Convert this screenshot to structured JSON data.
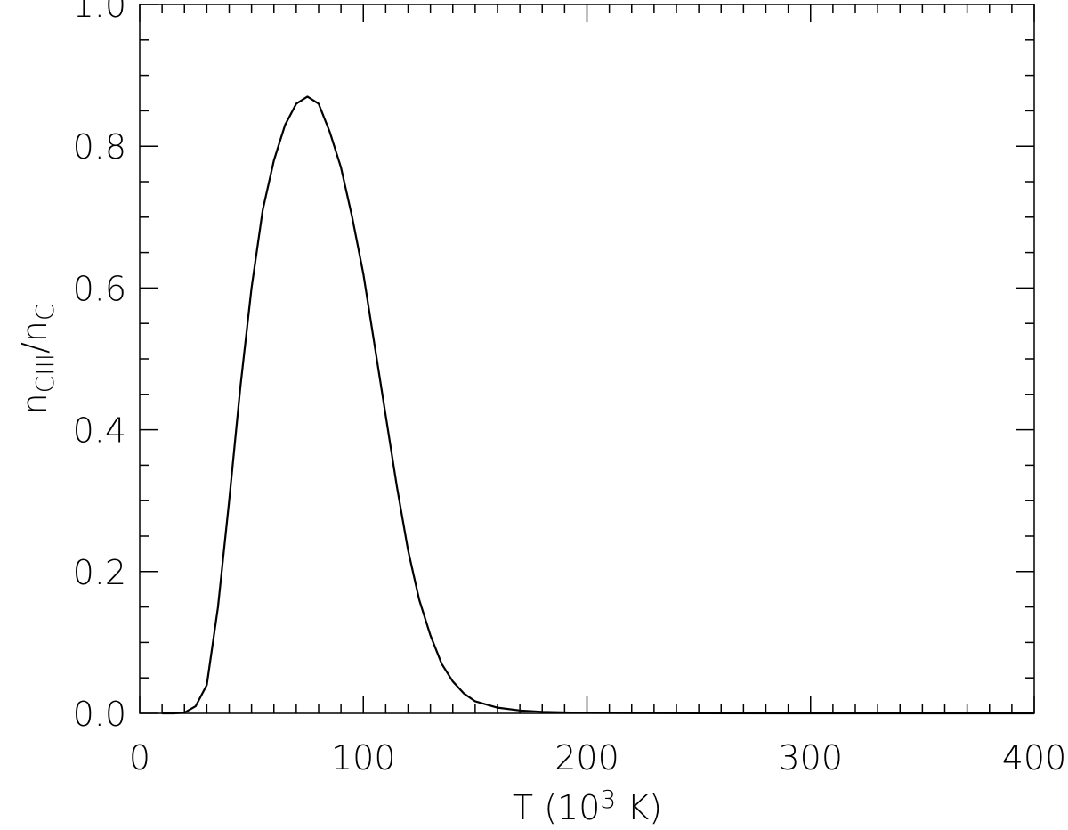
{
  "chart_data": {
    "type": "line",
    "xlabel": [
      {
        "text": "T (10"
      },
      {
        "text": "3",
        "sup": true
      },
      {
        "text": " K)"
      }
    ],
    "ylabel": [
      {
        "text": "n"
      },
      {
        "text": "CIII",
        "sub": true
      },
      {
        "text": "/n"
      },
      {
        "text": "C",
        "sub": true
      }
    ],
    "x": [
      10,
      15,
      20,
      25,
      30,
      35,
      40,
      45,
      50,
      55,
      60,
      65,
      70,
      75,
      80,
      85,
      90,
      95,
      100,
      105,
      110,
      115,
      120,
      125,
      130,
      135,
      140,
      145,
      150,
      160,
      170,
      180,
      200,
      250,
      300,
      350,
      400
    ],
    "series": [
      {
        "color": "#000000",
        "values": [
          0,
          0,
          0.001,
          0.01,
          0.04,
          0.15,
          0.3,
          0.46,
          0.6,
          0.71,
          0.78,
          0.83,
          0.86,
          0.87,
          0.86,
          0.82,
          0.77,
          0.7,
          0.62,
          0.52,
          0.42,
          0.32,
          0.23,
          0.16,
          0.11,
          0.07,
          0.045,
          0.028,
          0.017,
          0.008,
          0.004,
          0.002,
          0.0007,
          0.0001,
          0,
          0,
          0
        ]
      }
    ],
    "xlim": [
      0,
      400
    ],
    "ylim": [
      0,
      1
    ],
    "xticks": [
      0,
      100,
      200,
      300,
      400
    ],
    "yticks": [
      {
        "value": 0,
        "label": "0.0"
      },
      {
        "value": 0.2,
        "label": "0.2"
      },
      {
        "value": 0.4,
        "label": "0.4"
      },
      {
        "value": 0.6,
        "label": "0.6"
      },
      {
        "value": 0.8,
        "label": "0.8"
      },
      {
        "value": 1,
        "label": "1.0"
      }
    ],
    "xminorticks": [
      10,
      20,
      30,
      40,
      50,
      60,
      70,
      80,
      90,
      110,
      120,
      130,
      140,
      150,
      160,
      170,
      180,
      190,
      210,
      220,
      230,
      240,
      250,
      260,
      270,
      280,
      290,
      310,
      320,
      330,
      340,
      350,
      360,
      370,
      380,
      390
    ],
    "yminorticks": [
      0.05,
      0.1,
      0.15,
      0.25,
      0.3,
      0.35,
      0.45,
      0.5,
      0.55,
      0.65,
      0.7,
      0.75,
      0.85,
      0.9,
      0.95
    ]
  }
}
